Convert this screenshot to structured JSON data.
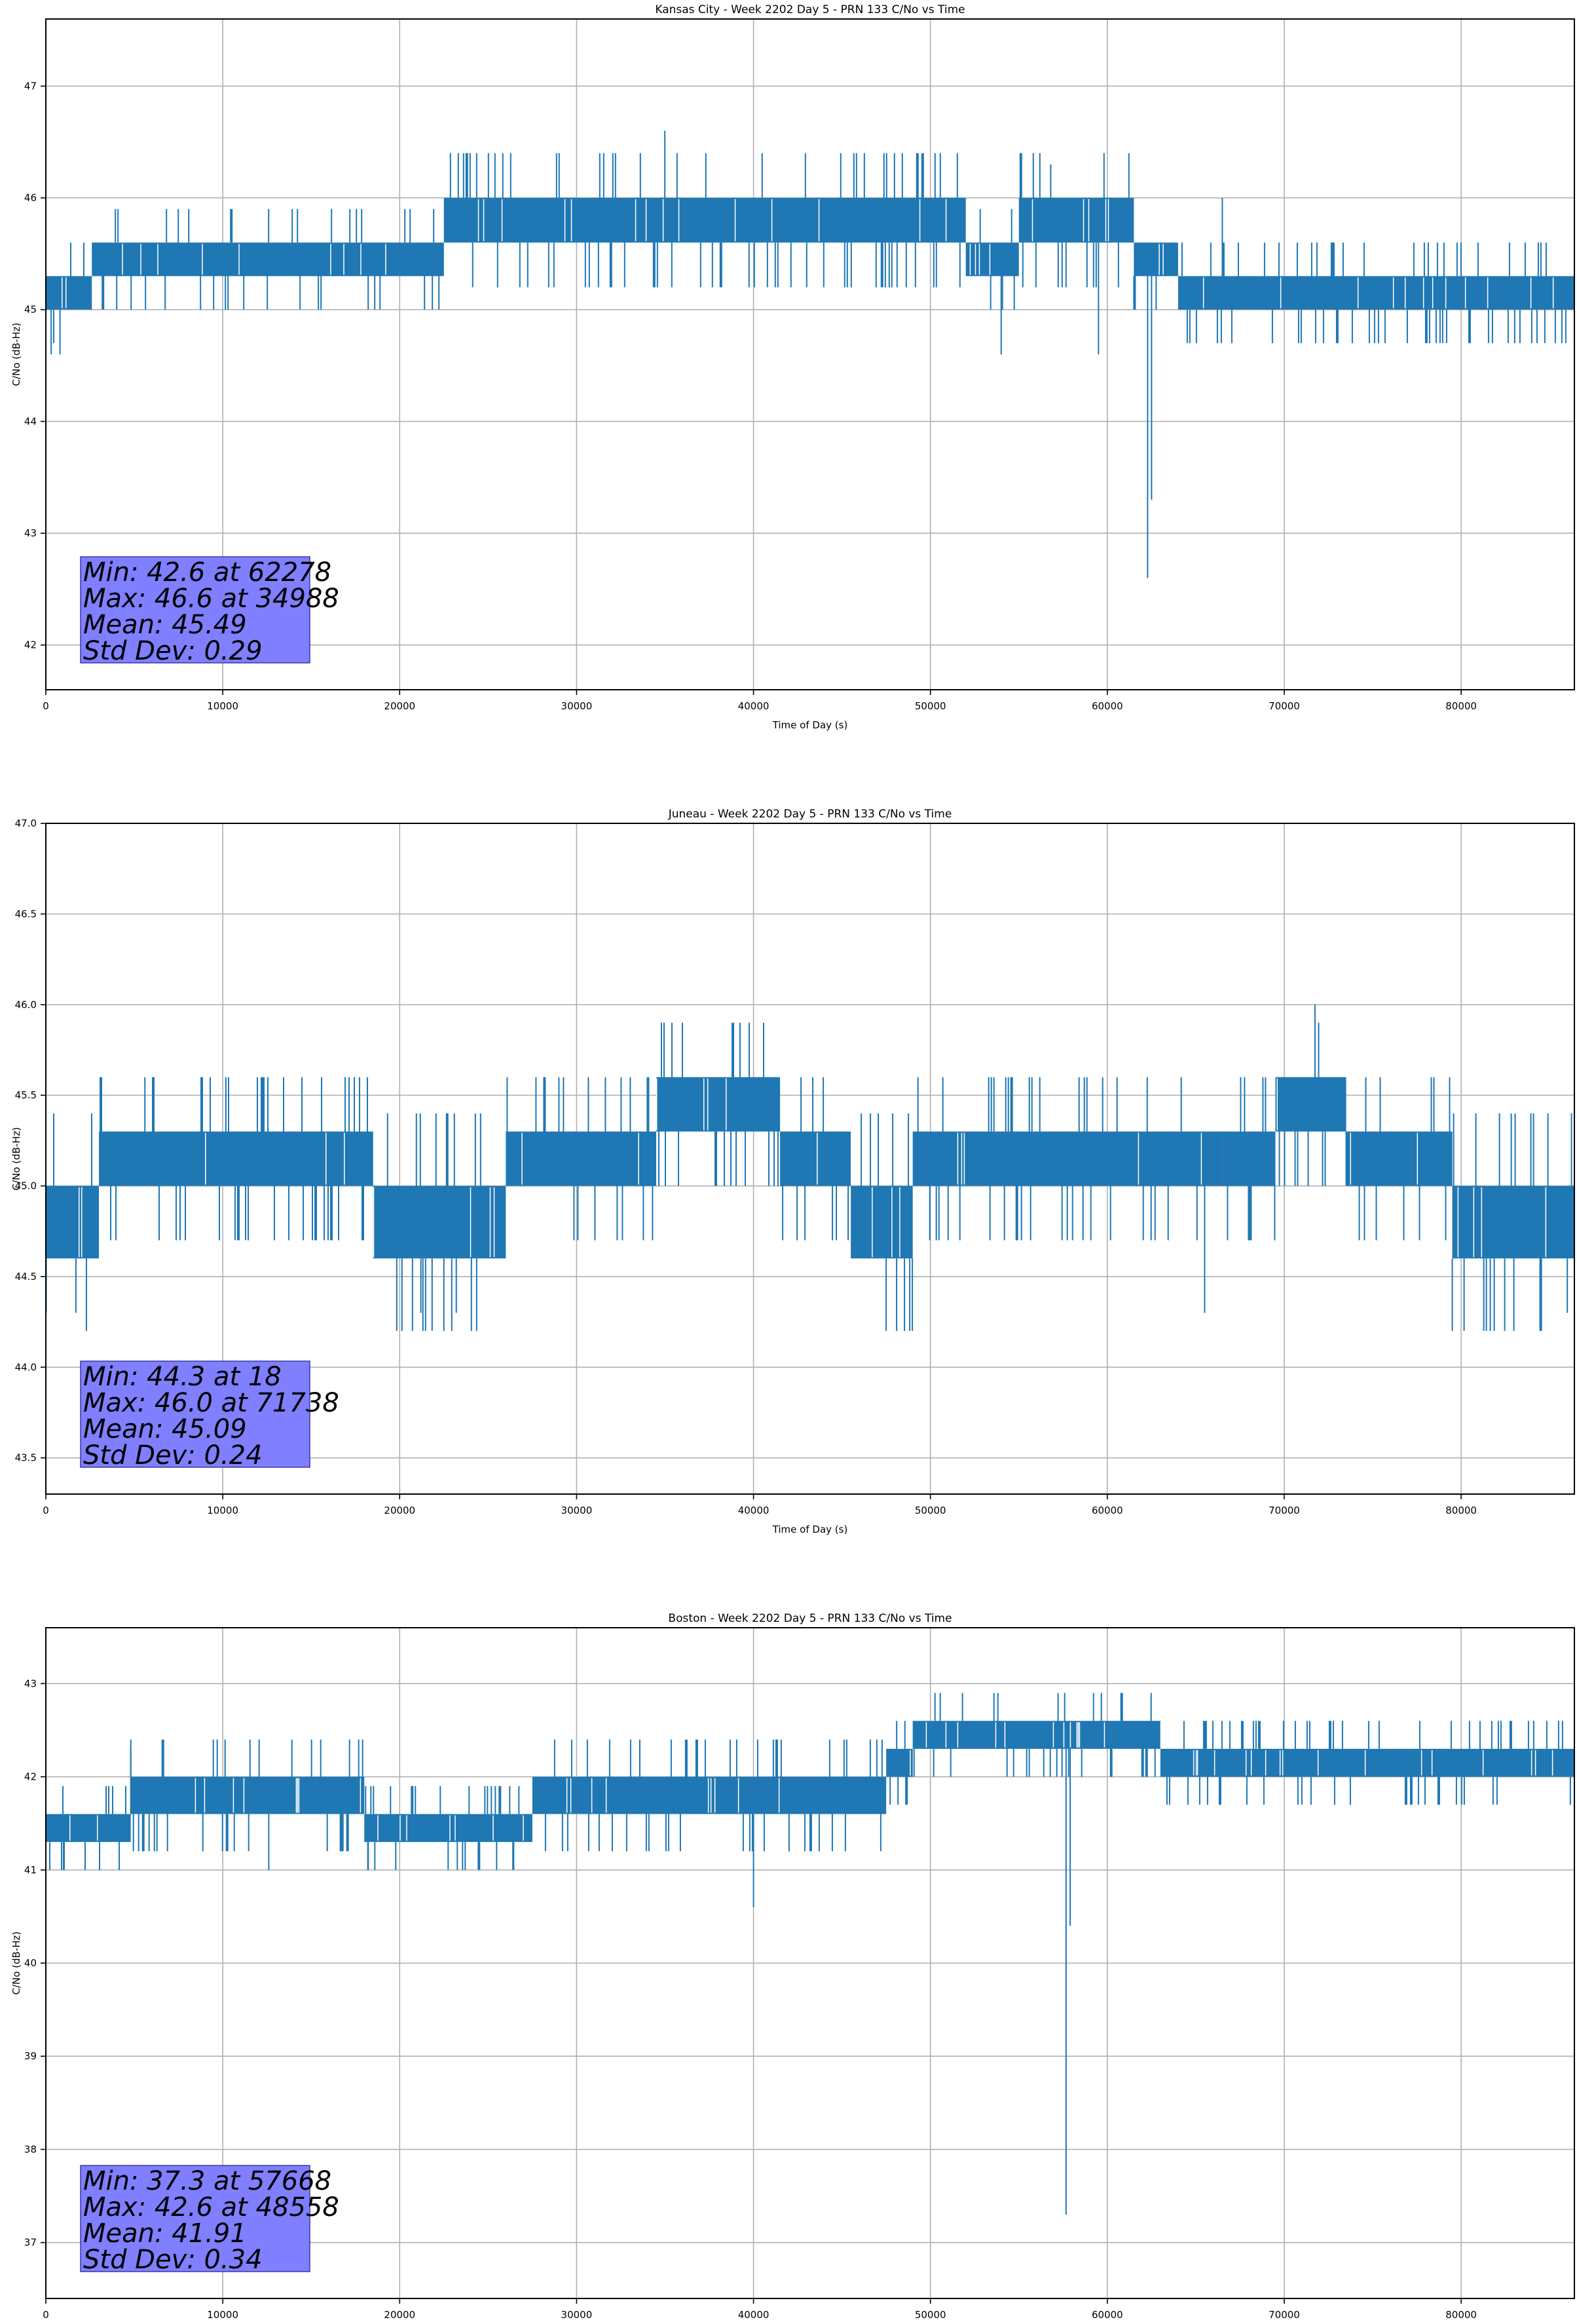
{
  "chart_data": [
    {
      "type": "line",
      "title": "Kansas City - Week 2202 Day 5 - PRN 133 C/No vs Time",
      "xlabel": "Time of Day (s)",
      "ylabel": "C/No (dB-Hz)",
      "xlim": [
        0,
        86400
      ],
      "ylim": [
        41.6,
        47.6
      ],
      "xticks": [
        0,
        10000,
        20000,
        30000,
        40000,
        50000,
        60000,
        70000,
        80000
      ],
      "xtick_labels": [
        "0",
        "10000",
        "20000",
        "30000",
        "40000",
        "50000",
        "60000",
        "70000",
        "80000"
      ],
      "yticks": [
        42,
        43,
        44,
        45,
        46,
        47
      ],
      "ytick_labels": [
        "42",
        "43",
        "44",
        "45",
        "46",
        "47"
      ],
      "grid": true,
      "line_color": "#1f77b4",
      "band_segments": [
        {
          "x": [
            0,
            2600
          ],
          "low": 45.0,
          "high": 45.3
        },
        {
          "x": [
            2600,
            22500
          ],
          "low": 45.3,
          "high": 45.6
        },
        {
          "x": [
            22500,
            52000
          ],
          "low": 45.6,
          "high": 46.0
        },
        {
          "x": [
            52000,
            55000
          ],
          "low": 45.3,
          "high": 45.6
        },
        {
          "x": [
            55000,
            61500
          ],
          "low": 45.6,
          "high": 46.0
        },
        {
          "x": [
            61500,
            64000
          ],
          "low": 45.3,
          "high": 45.6
        },
        {
          "x": [
            64000,
            86400
          ],
          "low": 45.0,
          "high": 45.3
        }
      ],
      "spikes": [
        {
          "x": 62278,
          "y": 42.6
        },
        {
          "x": 62500,
          "y": 43.3
        },
        {
          "x": 34988,
          "y": 46.6
        },
        {
          "x": 54000,
          "y": 44.6
        },
        {
          "x": 59500,
          "y": 44.6
        },
        {
          "x": 300,
          "y": 44.6
        },
        {
          "x": 800,
          "y": 44.6
        },
        {
          "x": 66500,
          "y": 46.0
        },
        {
          "x": 56800,
          "y": 46.3
        }
      ],
      "annotation": {
        "lines": [
          "Min: 42.6 at 62278",
          "Max: 46.6 at 34988",
          "Mean: 45.49",
          "Std Dev: 0.29"
        ],
        "box_color": "#7f7fff"
      }
    },
    {
      "type": "line",
      "title": "Juneau - Week 2202 Day 5 - PRN 133 C/No vs Time",
      "xlabel": "Time of Day (s)",
      "ylabel": "C/No (dB-Hz)",
      "xlim": [
        0,
        86400
      ],
      "ylim": [
        43.3,
        47.0
      ],
      "xticks": [
        0,
        10000,
        20000,
        30000,
        40000,
        50000,
        60000,
        70000,
        80000
      ],
      "xtick_labels": [
        "0",
        "10000",
        "20000",
        "30000",
        "40000",
        "50000",
        "60000",
        "70000",
        "80000"
      ],
      "yticks": [
        43.5,
        44.0,
        44.5,
        45.0,
        45.5,
        46.0,
        46.5,
        47.0
      ],
      "ytick_labels": [
        "43.5",
        "44.0",
        "44.5",
        "45.0",
        "45.5",
        "46.0",
        "46.5",
        "47.0"
      ],
      "grid": true,
      "line_color": "#1f77b4",
      "band_segments": [
        {
          "x": [
            0,
            3000
          ],
          "low": 44.6,
          "high": 45.0
        },
        {
          "x": [
            3000,
            18500
          ],
          "low": 45.0,
          "high": 45.3
        },
        {
          "x": [
            18500,
            26000
          ],
          "low": 44.6,
          "high": 45.0
        },
        {
          "x": [
            26000,
            34500
          ],
          "low": 45.0,
          "high": 45.3
        },
        {
          "x": [
            34500,
            41500
          ],
          "low": 45.3,
          "high": 45.6
        },
        {
          "x": [
            41500,
            45500
          ],
          "low": 45.0,
          "high": 45.3
        },
        {
          "x": [
            45500,
            49000
          ],
          "low": 44.6,
          "high": 45.0
        },
        {
          "x": [
            49000,
            66500
          ],
          "low": 45.0,
          "high": 45.3
        },
        {
          "x": [
            66500,
            69500
          ],
          "low": 45.0,
          "high": 45.3
        },
        {
          "x": [
            69500,
            73500
          ],
          "low": 45.3,
          "high": 45.6
        },
        {
          "x": [
            73500,
            79500
          ],
          "low": 45.0,
          "high": 45.3
        },
        {
          "x": [
            79500,
            86400
          ],
          "low": 44.6,
          "high": 45.0
        }
      ],
      "spikes": [
        {
          "x": 18,
          "y": 44.3
        },
        {
          "x": 1700,
          "y": 44.3
        },
        {
          "x": 21200,
          "y": 44.3
        },
        {
          "x": 23200,
          "y": 44.3
        },
        {
          "x": 65500,
          "y": 44.3
        },
        {
          "x": 71738,
          "y": 46.0
        },
        {
          "x": 5600,
          "y": 45.6
        },
        {
          "x": 29000,
          "y": 45.6
        },
        {
          "x": 84500,
          "y": 44.3
        },
        {
          "x": 86000,
          "y": 44.3
        }
      ],
      "annotation": {
        "lines": [
          "Min: 44.3 at 18",
          "Max: 46.0 at 71738",
          "Mean: 45.09",
          "Std Dev: 0.24"
        ],
        "box_color": "#7f7fff"
      }
    },
    {
      "type": "line",
      "title": "Boston - Week 2202 Day 5 - PRN 133 C/No vs Time",
      "xlabel": "Time of Day (s)",
      "ylabel": "C/No (dB-Hz)",
      "xlim": [
        0,
        86400
      ],
      "ylim": [
        36.4,
        43.6
      ],
      "xticks": [
        0,
        10000,
        20000,
        30000,
        40000,
        50000,
        60000,
        70000,
        80000
      ],
      "xtick_labels": [
        "0",
        "10000",
        "20000",
        "30000",
        "40000",
        "50000",
        "60000",
        "70000",
        "80000"
      ],
      "yticks": [
        37,
        38,
        39,
        40,
        41,
        42,
        43
      ],
      "ytick_labels": [
        "37",
        "38",
        "39",
        "40",
        "41",
        "42",
        "43"
      ],
      "grid": true,
      "line_color": "#1f77b4",
      "band_segments": [
        {
          "x": [
            0,
            4800
          ],
          "low": 41.3,
          "high": 41.6
        },
        {
          "x": [
            4800,
            18000
          ],
          "low": 41.6,
          "high": 42.0
        },
        {
          "x": [
            18000,
            27500
          ],
          "low": 41.3,
          "high": 41.6
        },
        {
          "x": [
            27500,
            47500
          ],
          "low": 41.6,
          "high": 42.0
        },
        {
          "x": [
            47500,
            49000
          ],
          "low": 42.0,
          "high": 42.3
        },
        {
          "x": [
            49000,
            63000
          ],
          "low": 42.3,
          "high": 42.6
        },
        {
          "x": [
            63000,
            86400
          ],
          "low": 42.0,
          "high": 42.3
        }
      ],
      "spikes": [
        {
          "x": 57668,
          "y": 37.3
        },
        {
          "x": 57900,
          "y": 40.4
        },
        {
          "x": 40000,
          "y": 40.6
        },
        {
          "x": 1000,
          "y": 41.0
        },
        {
          "x": 12600,
          "y": 41.0
        },
        {
          "x": 18200,
          "y": 41.0
        },
        {
          "x": 26400,
          "y": 41.0
        },
        {
          "x": 48558,
          "y": 42.6
        },
        {
          "x": 4800,
          "y": 42.3
        }
      ],
      "annotation": {
        "lines": [
          "Min: 37.3 at 57668",
          "Max: 42.6 at 48558",
          "Mean: 41.91",
          "Std Dev: 0.34"
        ],
        "box_color": "#7f7fff"
      }
    }
  ]
}
